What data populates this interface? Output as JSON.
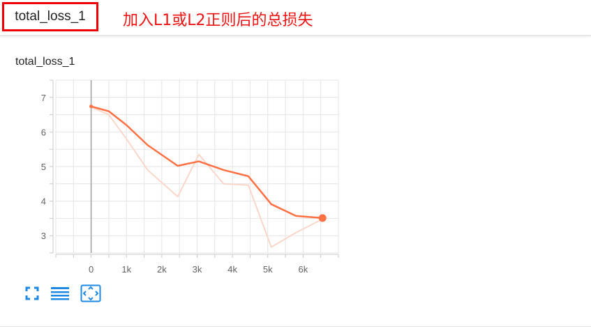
{
  "header": {
    "tag_label": "total_loss_1",
    "annotation": "加入L1或L2正则后的总损失",
    "tag_border_color": "#ee0000",
    "annotation_color": "#ee1111"
  },
  "card": {
    "title": "total_loss_1"
  },
  "toolbar": {
    "icons": [
      "fullscreen-icon",
      "data-table-icon",
      "fit-domain-icon"
    ],
    "icon_color": "#1e88e5"
  },
  "chart_data": {
    "type": "line",
    "title": "total_loss_1",
    "xlabel": "",
    "ylabel": "",
    "xlim": [
      -1000,
      7000
    ],
    "ylim": [
      2.5,
      7.5
    ],
    "x_ticks": [
      0,
      1000,
      2000,
      3000,
      4000,
      5000,
      6000
    ],
    "x_tick_labels": [
      "0",
      "1k",
      "2k",
      "3k",
      "4k",
      "5k",
      "6k"
    ],
    "y_ticks": [
      3,
      4,
      5,
      6,
      7
    ],
    "y_tick_labels": [
      "3",
      "4",
      "5",
      "6",
      "7"
    ],
    "grid": true,
    "series": [
      {
        "name": "",
        "role": "raw",
        "color": "#fbd6c9",
        "x": [
          0,
          500,
          1000,
          1600,
          2450,
          3050,
          3750,
          4450,
          5100,
          5800,
          6550
        ],
        "y": [
          6.72,
          6.5,
          5.8,
          4.9,
          4.13,
          5.35,
          4.5,
          4.46,
          2.67,
          3.09,
          3.48
        ]
      },
      {
        "name": "",
        "role": "smoothed",
        "color": "#ff7043",
        "x": [
          0,
          500,
          1000,
          1600,
          2450,
          3050,
          3750,
          4450,
          5100,
          5800,
          6550
        ],
        "y": [
          6.74,
          6.6,
          6.2,
          5.62,
          5.02,
          5.15,
          4.9,
          4.72,
          3.91,
          3.57,
          3.51
        ]
      }
    ]
  }
}
